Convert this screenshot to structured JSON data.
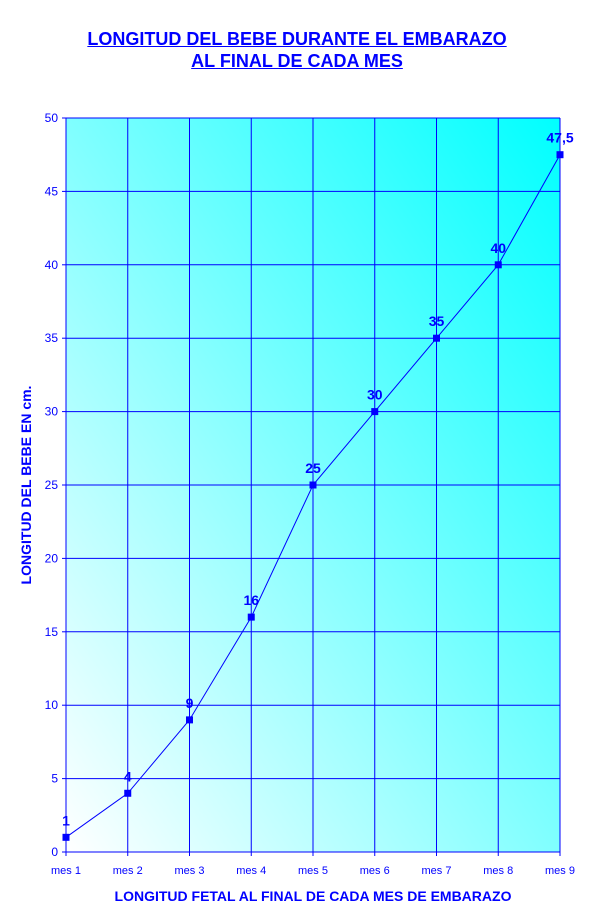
{
  "chart_data": {
    "type": "line",
    "title_line1": "LONGITUD DEL BEBE DURANTE EL EMBARAZO",
    "title_line2": "AL FINAL DE CADA MES",
    "xlabel": "LONGITUD FETAL AL FINAL DE CADA MES DE EMBARAZO",
    "ylabel": "LONGITUD DEL BEBE EN cm.",
    "categories": [
      "mes 1",
      "mes 2",
      "mes 3",
      "mes 4",
      "mes 5",
      "mes 6",
      "mes 7",
      "mes 8",
      "mes 9"
    ],
    "series": [
      {
        "values": [
          1,
          4,
          9,
          16,
          25,
          30,
          35,
          40,
          47.5
        ]
      }
    ],
    "data_labels": [
      "1",
      "4",
      "9",
      "16",
      "25",
      "30",
      "35",
      "40",
      "47,5"
    ],
    "ylim": [
      0,
      50
    ],
    "yticks": [
      0,
      5,
      10,
      15,
      20,
      25,
      30,
      35,
      40,
      45,
      50
    ],
    "grid": true,
    "colors": {
      "line": "#0000ff",
      "marker": "#0000ff",
      "text": "#0000ff",
      "grid": "#0000ff",
      "background_start": "#ffffff",
      "background_end": "#00ffff"
    }
  }
}
